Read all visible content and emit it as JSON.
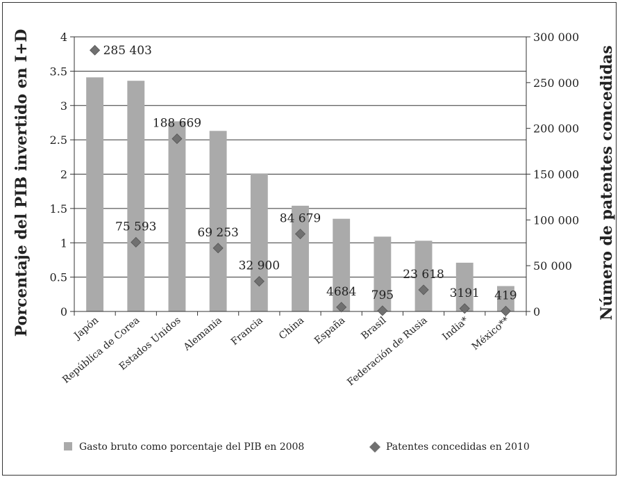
{
  "chart_data": {
    "type": "bar",
    "categories": [
      "Japón",
      "República de Corea",
      "Estados Unidos",
      "Alemania",
      "Francia",
      "China",
      "España",
      "Brasil",
      "Federación de Rusia",
      "India*",
      "México**"
    ],
    "series": [
      {
        "name": "Gasto bruto como porcentaje del PIB en 2008",
        "type": "bar",
        "axis": "left",
        "values": [
          3.41,
          3.36,
          2.77,
          2.63,
          2.01,
          1.54,
          1.35,
          1.09,
          1.03,
          0.71,
          0.37
        ],
        "color": "#aaaaaa"
      },
      {
        "name": "Patentes concedidas en 2010",
        "type": "scatter",
        "axis": "right",
        "values": [
          285403,
          75593,
          188669,
          69253,
          32900,
          84679,
          4684,
          795,
          23618,
          3191,
          419
        ],
        "labels": [
          "285 403",
          "75 593",
          "188 669",
          "69 253",
          "32 900",
          "84 679",
          "4684",
          "795",
          "23 618",
          "3191",
          "419"
        ],
        "color": "#707070"
      }
    ],
    "ylabel": "Porcentaje del PIB invertido en I+D",
    "ylabel_right": "Número de patentes concedidas",
    "ylim": [
      0,
      4
    ],
    "ylim_right": [
      0,
      300000
    ],
    "yticks": [
      "0",
      "0.5",
      "1",
      "1.5",
      "2",
      "2.5",
      "3",
      "3.5",
      "4"
    ],
    "yticks_right": [
      "0",
      "50 000",
      "100 000",
      "150 000",
      "200 000",
      "250 000",
      "300 000"
    ],
    "grid": true,
    "legend_position": "bottom"
  }
}
